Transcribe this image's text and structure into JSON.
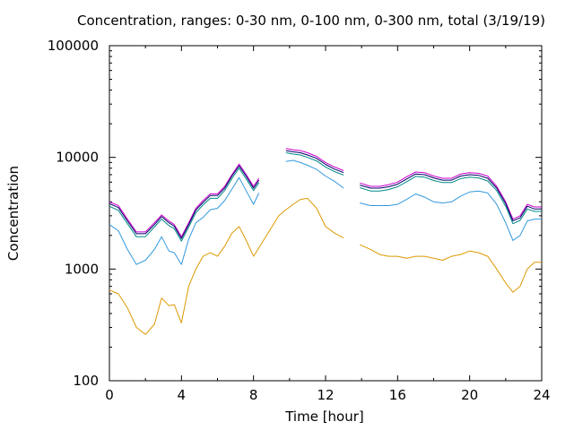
{
  "chart_data": {
    "type": "line",
    "title": "Concentration, ranges: 0-30 nm, 0-100 nm, 0-300 nm, total (3/19/19)",
    "xlabel": "Time [hour]",
    "ylabel": "Concentration",
    "xlim": [
      0,
      24
    ],
    "ylim": [
      100,
      100000
    ],
    "yscale": "log",
    "grid": false,
    "xticks": [
      "0",
      "4",
      "8",
      "12",
      "16",
      "20",
      "24"
    ],
    "yticks": [
      "100",
      "1000",
      "10000",
      "100000"
    ],
    "x": [
      0,
      0.5,
      1,
      1.5,
      2,
      2.5,
      2.9,
      3.3,
      3.6,
      4,
      4.4,
      4.8,
      5.2,
      5.6,
      6,
      6.4,
      6.8,
      7.2,
      7.6,
      8,
      8.3,
      9.4,
      9.8,
      10.2,
      10.6,
      11,
      11.5,
      12,
      12.5,
      13,
      13.5,
      13.9,
      14.5,
      15,
      15.5,
      16,
      16.5,
      17,
      17.5,
      18,
      18.5,
      19,
      19.5,
      20,
      20.5,
      21,
      21.5,
      22,
      22.4,
      22.8,
      23.2,
      23.6,
      24
    ],
    "series": [
      {
        "color": "#cc00cc",
        "values": [
          4000,
          3700,
          2800,
          2150,
          2150,
          2600,
          3050,
          2700,
          2500,
          1950,
          2600,
          3500,
          4100,
          4700,
          4700,
          5500,
          7000,
          8700,
          7000,
          5500,
          6500,
          null,
          12000,
          11700,
          11500,
          11000,
          10200,
          9000,
          8200,
          7600,
          null,
          5900,
          5500,
          5500,
          5700,
          6000,
          6700,
          7400,
          7300,
          6800,
          6500,
          6500,
          7100,
          7300,
          7200,
          6800,
          5500,
          4000,
          2800,
          3000,
          3800,
          3600,
          3600
        ]
      },
      {
        "color": "#000066",
        "values": [
          3850,
          3550,
          2700,
          2070,
          2070,
          2500,
          2950,
          2600,
          2420,
          1880,
          2500,
          3380,
          3950,
          4550,
          4550,
          5300,
          6800,
          8400,
          6750,
          5300,
          6250,
          null,
          11500,
          11200,
          11000,
          10500,
          9800,
          8650,
          7850,
          7300,
          null,
          5650,
          5300,
          5300,
          5450,
          5750,
          6400,
          7100,
          7000,
          6550,
          6250,
          6250,
          6800,
          7000,
          6900,
          6500,
          5300,
          3850,
          2700,
          2880,
          3650,
          3450,
          3450
        ]
      },
      {
        "color": "#008888",
        "values": [
          3650,
          3350,
          2550,
          1950,
          1950,
          2380,
          2800,
          2450,
          2300,
          1780,
          2380,
          3200,
          3750,
          4300,
          4300,
          5050,
          6450,
          8000,
          6400,
          5050,
          5950,
          null,
          11000,
          10700,
          10500,
          10000,
          9300,
          8200,
          7450,
          6950,
          null,
          5350,
          5000,
          5000,
          5150,
          5450,
          6050,
          6750,
          6650,
          6200,
          5950,
          5950,
          6450,
          6650,
          6550,
          6150,
          5050,
          3650,
          2550,
          2730,
          3450,
          3280,
          3280
        ]
      },
      {
        "color": "#3399dd",
        "values": [
          2500,
          2200,
          1500,
          1100,
          1200,
          1500,
          1950,
          1450,
          1400,
          1100,
          1850,
          2600,
          2900,
          3400,
          3500,
          4100,
          5200,
          6600,
          5000,
          3800,
          4800,
          null,
          9200,
          9400,
          9000,
          8500,
          7800,
          6800,
          6100,
          5300,
          null,
          3900,
          3700,
          3700,
          3700,
          3800,
          4200,
          4700,
          4400,
          4000,
          3900,
          4000,
          4500,
          4900,
          5000,
          4800,
          3800,
          2600,
          1800,
          2000,
          2700,
          2800,
          2800
        ]
      },
      {
        "color": "#dd9900",
        "values": [
          650,
          600,
          450,
          300,
          260,
          320,
          550,
          470,
          480,
          330,
          700,
          1000,
          1300,
          1400,
          1300,
          1600,
          2100,
          2400,
          1800,
          1300,
          1550,
          3000,
          3400,
          3800,
          4200,
          4300,
          3500,
          2400,
          2100,
          1900,
          null,
          1650,
          1500,
          1350,
          1300,
          1300,
          1250,
          1300,
          1300,
          1250,
          1200,
          1300,
          1350,
          1450,
          1400,
          1300,
          1000,
          750,
          620,
          700,
          1000,
          1150,
          1150
        ]
      }
    ]
  }
}
